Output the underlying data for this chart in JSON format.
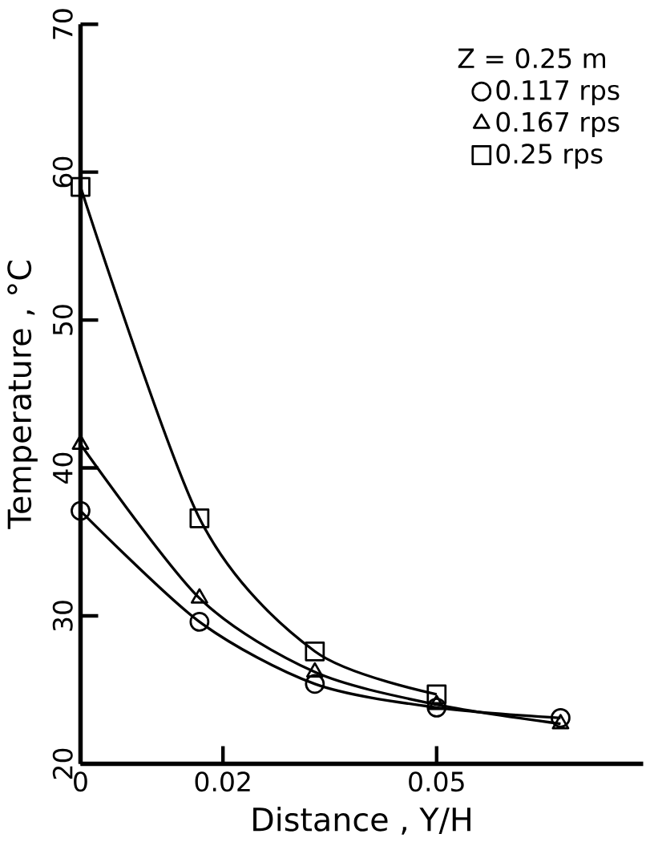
{
  "chart_data": {
    "type": "line",
    "xlabel": "Distance , Y/H",
    "ylabel": "Temperature , °C",
    "legend_title": "Z = 0.25 m",
    "x": [
      0,
      0.0167,
      0.0329,
      0.05,
      0.0674
    ],
    "series": [
      {
        "name": "0.117 rps",
        "color": "#000000",
        "marker": "circle",
        "values": [
          37.1,
          29.6,
          25.4,
          23.8,
          23.1
        ]
      },
      {
        "name": "0.167 rps",
        "color": "#000000",
        "marker": "triangle",
        "values": [
          41.6,
          31.2,
          26.2,
          24.0,
          22.7
        ]
      },
      {
        "name": "0.25 rps",
        "color": "#000000",
        "marker": "square",
        "values": [
          59.0,
          36.6,
          27.6,
          24.7,
          null
        ]
      }
    ],
    "xlim": [
      0,
      0.079
    ],
    "xticks": [
      0,
      0.02,
      0.05
    ],
    "ylim": [
      20,
      70
    ],
    "yticks": [
      20,
      30,
      40,
      50,
      60,
      70
    ],
    "legend": "top right",
    "line_style": "solid",
    "grid": false
  }
}
